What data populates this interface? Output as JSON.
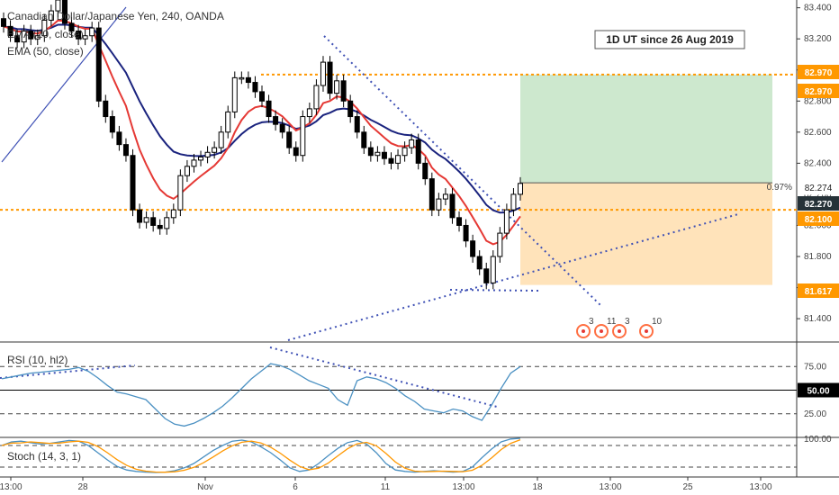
{
  "header": {
    "title": "Canadian Dollar/Japanese Yen, 240, OANDA",
    "ema_label": "EMA (20, close)",
    "ema2_label": "EMA (50, close)",
    "rsi_label": "RSI (10, hl2)",
    "stoch_label": "Stoch (14, 3, 1)"
  },
  "annotation": "1D UT since 26 Aug 2019",
  "percent_label": "0.97%",
  "event_markers": [
    "3",
    "11",
    "3",
    "10"
  ],
  "colors": {
    "up_candle": "#ffffff",
    "down_candle": "#000000",
    "ema20": "#e53935",
    "ema50": "#1a237e",
    "trendline": "#3f51b5",
    "level": "#ff9800",
    "profit_zone": "#c8e6c9",
    "loss_zone": "#ffe0b2",
    "rsi": "#4a90c2",
    "stoch_k": "#4a90c2",
    "stoch_d": "#ff9800"
  },
  "chart_data": [
    {
      "type": "candlestick",
      "title": "Canadian Dollar/Japanese Yen, 240, OANDA",
      "ylim": [
        81.25,
        83.45
      ],
      "y_ticks": [
        "83.400",
        "83.200",
        "83.000",
        "82.800",
        "82.600",
        "82.400",
        "82.200",
        "82.000",
        "81.800",
        "81.600",
        "81.400"
      ],
      "x_ticks": [
        "13:00",
        "28",
        "Nov",
        "6",
        "11",
        "13:00",
        "18",
        "13:00",
        "25",
        "13:00"
      ],
      "price_tags": [
        {
          "label": "82.970",
          "value": 82.97,
          "color": "#ff9800"
        },
        {
          "label": "82.970",
          "value": 82.91,
          "color": "#ff9800"
        },
        {
          "label": "82.274",
          "value": 82.274,
          "color": "#ffffff"
        },
        {
          "label": "82.270",
          "value": 82.2,
          "color": "#263238"
        },
        {
          "label": "82.100",
          "value": 82.1,
          "color": "#ff9800"
        },
        {
          "label": "81.617",
          "value": 81.617,
          "color": "#ff9800"
        }
      ],
      "levels": [
        82.97,
        82.1
      ],
      "position": {
        "entry": 82.274,
        "target": 82.97,
        "stop": 81.617
      },
      "closes": [
        83.28,
        83.22,
        83.18,
        83.25,
        83.2,
        83.22,
        83.32,
        83.38,
        83.45,
        83.3,
        83.25,
        83.2,
        83.22,
        83.27,
        82.8,
        82.7,
        82.6,
        82.52,
        82.45,
        82.1,
        82.02,
        82.05,
        82.0,
        81.98,
        82.05,
        82.1,
        82.32,
        82.38,
        82.42,
        82.44,
        82.47,
        82.5,
        82.6,
        82.73,
        82.95,
        82.95,
        82.92,
        82.86,
        82.8,
        82.7,
        82.65,
        82.6,
        82.5,
        82.45,
        82.7,
        82.75,
        82.9,
        83.05,
        82.85,
        82.93,
        82.8,
        82.7,
        82.6,
        82.5,
        82.45,
        82.47,
        82.43,
        82.4,
        82.45,
        82.5,
        82.55,
        82.4,
        82.3,
        82.1,
        82.17,
        82.2,
        82.05,
        82.0,
        81.9,
        81.8,
        81.72,
        81.63,
        81.8,
        81.95,
        82.1,
        82.2,
        82.27
      ]
    },
    {
      "type": "line",
      "title": "RSI (10, hl2)",
      "ylim": [
        0,
        100
      ],
      "y_ticks": [
        "75.00",
        "50.00",
        "25.00"
      ],
      "values": [
        62,
        64,
        66,
        68,
        69,
        70,
        71,
        72,
        74,
        70,
        63,
        55,
        48,
        46,
        43,
        40,
        30,
        20,
        14,
        12,
        15,
        20,
        26,
        33,
        42,
        52,
        62,
        70,
        78,
        76,
        72,
        66,
        60,
        56,
        52,
        40,
        34,
        60,
        64,
        62,
        58,
        52,
        44,
        38,
        30,
        28,
        26,
        30,
        28,
        22,
        18,
        34,
        52,
        68,
        75
      ]
    },
    {
      "type": "line",
      "title": "Stoch (14, 3, 1)",
      "ylim": [
        0,
        100
      ],
      "y_ticks": [
        "100.00"
      ],
      "values": [
        80,
        90,
        92,
        88,
        84,
        86,
        90,
        94,
        92,
        80,
        60,
        40,
        22,
        12,
        8,
        6,
        5,
        6,
        10,
        18,
        30,
        48,
        66,
        80,
        92,
        95,
        90,
        76,
        60,
        40,
        18,
        8,
        12,
        30,
        52,
        72,
        88,
        94,
        84,
        60,
        30,
        12,
        8,
        6,
        8,
        10,
        8,
        6,
        8,
        20,
        46,
        70,
        90,
        98,
        100
      ]
    }
  ]
}
